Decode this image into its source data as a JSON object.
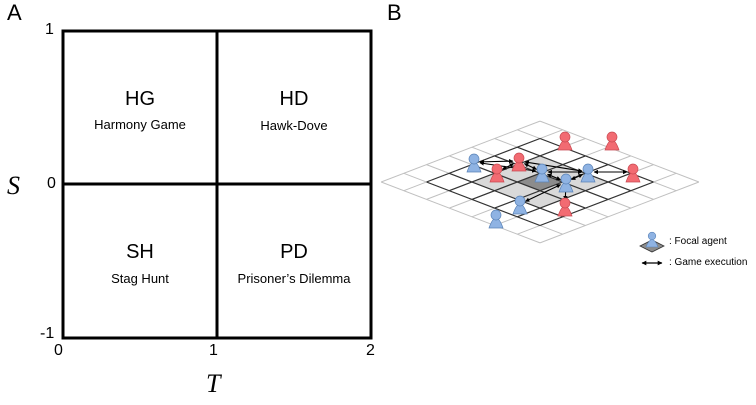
{
  "panelA": {
    "label": "A",
    "x_axis_title": "T",
    "y_axis_title": "S",
    "x_ticks": [
      "0",
      "1",
      "2"
    ],
    "y_ticks": [
      "1",
      "0",
      "-1"
    ],
    "quadrants": {
      "top_left": {
        "abbr": "HG",
        "name": "Harmony Game"
      },
      "top_right": {
        "abbr": "HD",
        "name": "Hawk-Dove"
      },
      "bottom_left": {
        "abbr": "SH",
        "name": "Stag Hunt"
      },
      "bottom_right": {
        "abbr": "PD",
        "name": "Prisoner’s Dilemma"
      }
    }
  },
  "panelB": {
    "label": "B",
    "legend": {
      "focal_agent": ": Focal agent",
      "game_execution": ": Game execution"
    },
    "colors": {
      "blue_agent": "#8fb3e3",
      "red_agent": "#f26b72",
      "neighborhood_shade": "#d9d9d9",
      "focal_cell": "#8c8c8c",
      "grid_light": "#c0c0c0",
      "grid_dark": "#333333"
    }
  }
}
